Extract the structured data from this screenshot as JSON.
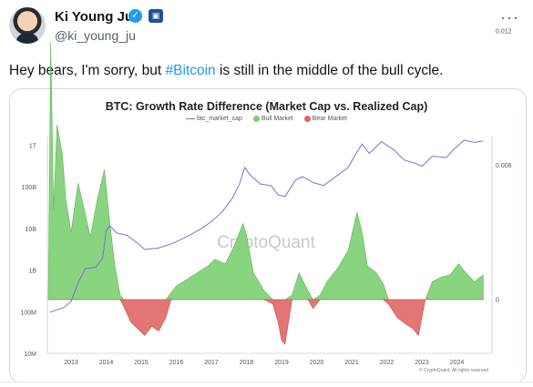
{
  "author": {
    "name": "Ki Young Ju",
    "handle": "@ki_young_ju",
    "verified_icon": "verified-badge-icon",
    "affiliate_icon": "affiliate-badge-icon",
    "more_label": "···"
  },
  "tweet": {
    "text_before": "Hey bears, I'm sorry, but ",
    "hashtag": "#Bitcoin",
    "text_after": " is still in the middle of the bull cycle."
  },
  "colors": {
    "accent": "#1d9bf0",
    "market_cap_line": "#7d6fd6",
    "bull": "#7ccf72",
    "bear": "#e06666"
  },
  "chart_data": {
    "type": "area",
    "title": "BTC: Growth Rate Difference (Market Cap vs. Realized Cap)",
    "legend": [
      "btc_market_cap",
      "Bull Market",
      "Bear Market"
    ],
    "x_ticks": [
      "2013",
      "2014",
      "2015",
      "2016",
      "2017",
      "2018",
      "2019",
      "2020",
      "2021",
      "2022",
      "2023",
      "2024"
    ],
    "left_ticks": [
      "1T",
      "100B",
      "10B",
      "1B",
      "100M",
      "10M"
    ],
    "right_ticks": [
      "0.012",
      "0.006",
      "0"
    ],
    "left_scale": "log",
    "watermark": "CryptoQuant",
    "copyright": "© CryptoQuant. All rights reserved",
    "series": [
      {
        "name": "btc_market_cap",
        "axis": "left",
        "points": [
          [
            2012.4,
            100000000
          ],
          [
            2012.8,
            130000000
          ],
          [
            2013.0,
            180000000
          ],
          [
            2013.2,
            500000000
          ],
          [
            2013.4,
            1100000000
          ],
          [
            2013.7,
            1200000000
          ],
          [
            2013.9,
            2000000000
          ],
          [
            2014.0,
            9000000000
          ],
          [
            2014.1,
            12000000000
          ],
          [
            2014.3,
            8000000000
          ],
          [
            2014.6,
            7000000000
          ],
          [
            2014.9,
            4500000000
          ],
          [
            2015.1,
            3200000000
          ],
          [
            2015.5,
            3500000000
          ],
          [
            2015.9,
            4500000000
          ],
          [
            2016.3,
            6500000000
          ],
          [
            2016.7,
            10000000000
          ],
          [
            2017.0,
            15000000000
          ],
          [
            2017.3,
            25000000000
          ],
          [
            2017.6,
            55000000000
          ],
          [
            2017.8,
            120000000000
          ],
          [
            2017.95,
            300000000000
          ],
          [
            2018.1,
            200000000000
          ],
          [
            2018.4,
            120000000000
          ],
          [
            2018.7,
            110000000000
          ],
          [
            2018.9,
            65000000000
          ],
          [
            2019.1,
            60000000000
          ],
          [
            2019.4,
            150000000000
          ],
          [
            2019.6,
            180000000000
          ],
          [
            2019.9,
            130000000000
          ],
          [
            2020.2,
            110000000000
          ],
          [
            2020.5,
            170000000000
          ],
          [
            2020.9,
            300000000000
          ],
          [
            2021.1,
            600000000000
          ],
          [
            2021.3,
            1100000000000
          ],
          [
            2021.5,
            650000000000
          ],
          [
            2021.85,
            1250000000000
          ],
          [
            2022.2,
            800000000000
          ],
          [
            2022.5,
            450000000000
          ],
          [
            2022.8,
            380000000000
          ],
          [
            2023.0,
            320000000000
          ],
          [
            2023.3,
            560000000000
          ],
          [
            2023.7,
            520000000000
          ],
          [
            2023.9,
            800000000000
          ],
          [
            2024.2,
            1350000000000
          ],
          [
            2024.5,
            1200000000000
          ],
          [
            2024.75,
            1300000000000
          ]
        ]
      },
      {
        "name": "Growth Rate Difference",
        "axis": "right",
        "points": [
          [
            2012.35,
            0.0
          ],
          [
            2012.42,
            0.0115
          ],
          [
            2012.5,
            0.004
          ],
          [
            2012.6,
            0.0078
          ],
          [
            2012.75,
            0.0065
          ],
          [
            2012.85,
            0.0045
          ],
          [
            2013.0,
            0.003
          ],
          [
            2013.2,
            0.0052
          ],
          [
            2013.35,
            0.0042
          ],
          [
            2013.55,
            0.0028
          ],
          [
            2013.75,
            0.0045
          ],
          [
            2013.95,
            0.0058
          ],
          [
            2014.1,
            0.0035
          ],
          [
            2014.25,
            0.0015
          ],
          [
            2014.4,
            0.0002
          ],
          [
            2014.5,
            -0.0003
          ],
          [
            2014.7,
            -0.001
          ],
          [
            2014.9,
            -0.0013
          ],
          [
            2015.1,
            -0.0016
          ],
          [
            2015.3,
            -0.0012
          ],
          [
            2015.5,
            -0.0014
          ],
          [
            2015.7,
            -0.0008
          ],
          [
            2015.85,
            0.0003
          ],
          [
            2016.0,
            0.0006
          ],
          [
            2016.3,
            0.0009
          ],
          [
            2016.6,
            0.0012
          ],
          [
            2016.9,
            0.0015
          ],
          [
            2017.1,
            0.0018
          ],
          [
            2017.4,
            0.0016
          ],
          [
            2017.65,
            0.0024
          ],
          [
            2017.9,
            0.0034
          ],
          [
            2018.0,
            0.0029
          ],
          [
            2018.2,
            0.0012
          ],
          [
            2018.5,
            0.0004
          ],
          [
            2018.75,
            -0.0002
          ],
          [
            2018.9,
            -0.001
          ],
          [
            2019.0,
            -0.0018
          ],
          [
            2019.1,
            -0.002
          ],
          [
            2019.3,
            0.0002
          ],
          [
            2019.5,
            0.0012
          ],
          [
            2019.75,
            0.0004
          ],
          [
            2019.9,
            -0.0004
          ],
          [
            2020.1,
            0.0002
          ],
          [
            2020.3,
            0.0008
          ],
          [
            2020.6,
            0.0014
          ],
          [
            2020.9,
            0.0022
          ],
          [
            2021.15,
            0.0039
          ],
          [
            2021.3,
            0.003
          ],
          [
            2021.45,
            0.0015
          ],
          [
            2021.7,
            0.0012
          ],
          [
            2021.9,
            0.0007
          ],
          [
            2022.05,
            -0.0002
          ],
          [
            2022.3,
            -0.0008
          ],
          [
            2022.55,
            -0.0011
          ],
          [
            2022.75,
            -0.0013
          ],
          [
            2022.9,
            -0.0016
          ],
          [
            2023.0,
            -0.0008
          ],
          [
            2023.1,
            0.0
          ],
          [
            2023.3,
            0.0008
          ],
          [
            2023.55,
            0.001
          ],
          [
            2023.8,
            0.0011
          ],
          [
            2024.05,
            0.0016
          ],
          [
            2024.25,
            0.0012
          ],
          [
            2024.5,
            0.0008
          ],
          [
            2024.75,
            0.0011
          ]
        ]
      }
    ]
  }
}
